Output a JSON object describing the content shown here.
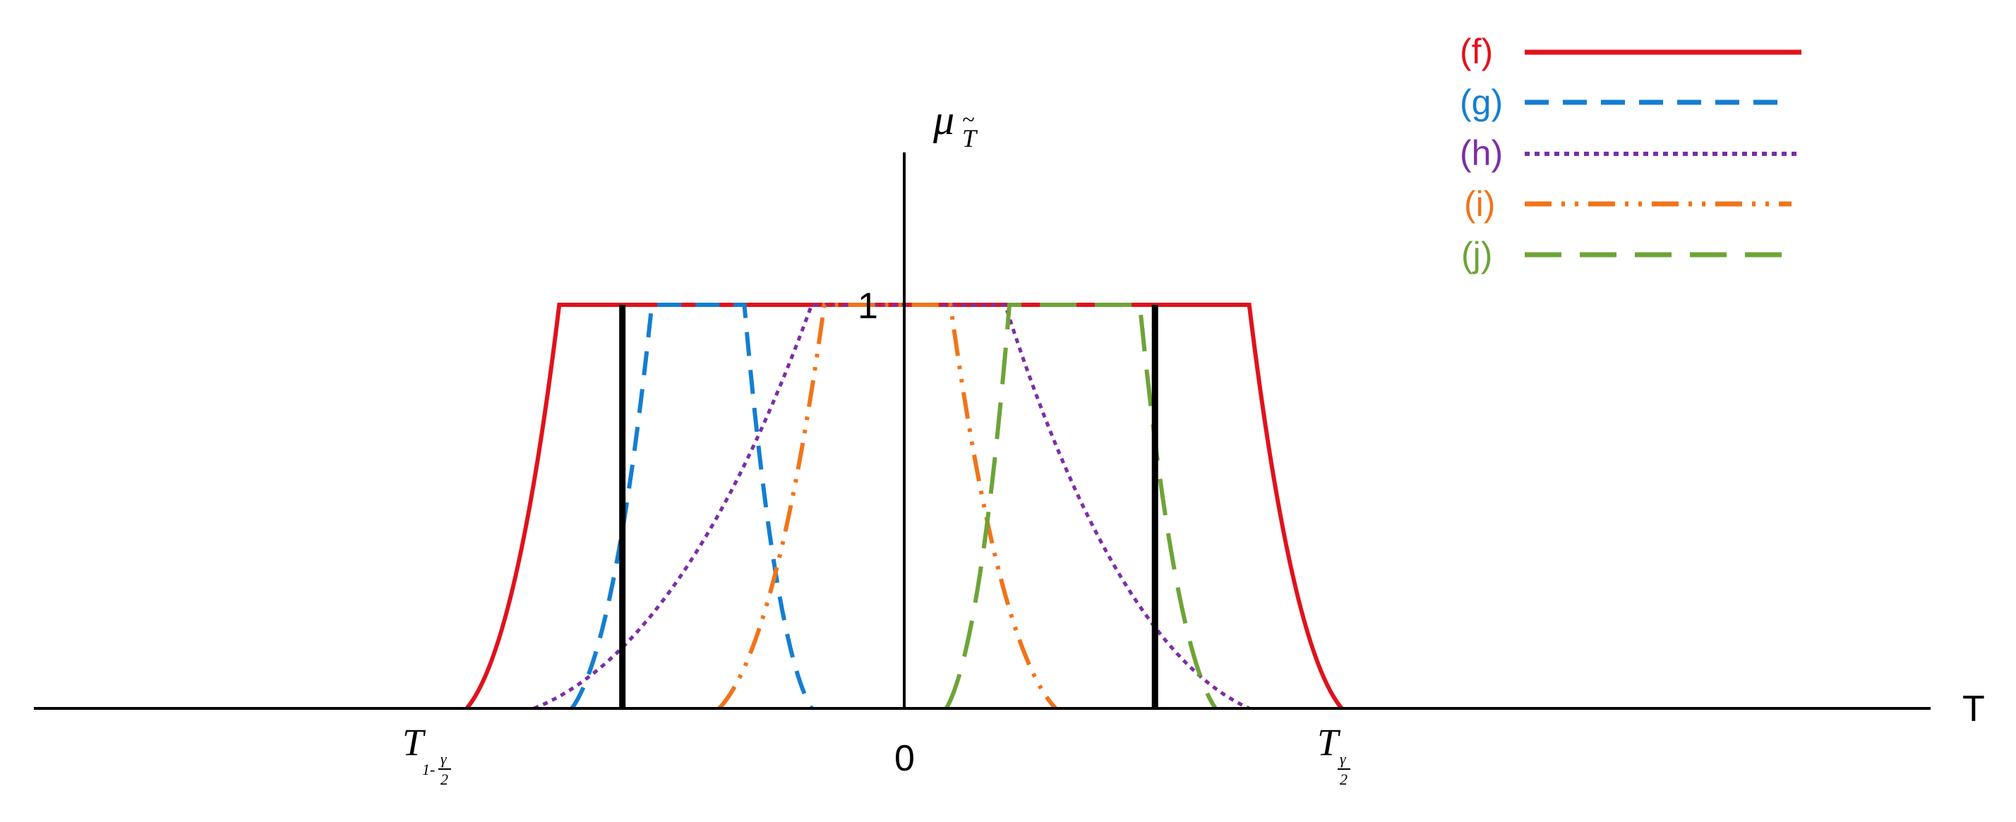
{
  "axes": {
    "x_label": "T",
    "y_label_main": "μ",
    "y_label_sub": "T",
    "y_label_tilde": "~",
    "origin_label": "0",
    "one_label": "1"
  },
  "markers": {
    "left": {
      "base": "T",
      "sub_prefix": "1-",
      "frac_num": "γ",
      "frac_den": "2"
    },
    "right": {
      "base": "T",
      "frac_num": "γ",
      "frac_den": "2"
    }
  },
  "legend": [
    {
      "label": "(f)",
      "color": "#e0121b",
      "dash": "solid"
    },
    {
      "label": "(g)",
      "color": "#137ed3",
      "dash": "dashed"
    },
    {
      "label": "(h)",
      "color": "#7b2ea6",
      "dash": "dotted"
    },
    {
      "label": "(i)",
      "color": "#f0741a",
      "dash": "dash-dot-dot"
    },
    {
      "label": "(j)",
      "color": "#6ea437",
      "dash": "long-dash"
    }
  ],
  "curves": [
    {
      "label": "(f)",
      "support": [
        -5.2,
        5.2
      ],
      "core": [
        -4.1,
        4.1
      ]
    },
    {
      "label": "(g)",
      "support": [
        -3.95,
        -1.1
      ],
      "core": [
        -3.0,
        -1.9
      ]
    },
    {
      "label": "(h)",
      "support": [
        -4.4,
        4.1
      ],
      "core": [
        -1.1,
        1.2
      ]
    },
    {
      "label": "(i)",
      "support": [
        -2.2,
        1.8
      ],
      "core": [
        -0.95,
        0.55
      ]
    },
    {
      "label": "(j)",
      "support": [
        0.5,
        3.7
      ],
      "core": [
        1.25,
        2.8
      ]
    }
  ],
  "marker_values": {
    "left": -3.35,
    "right": 2.98
  }
}
